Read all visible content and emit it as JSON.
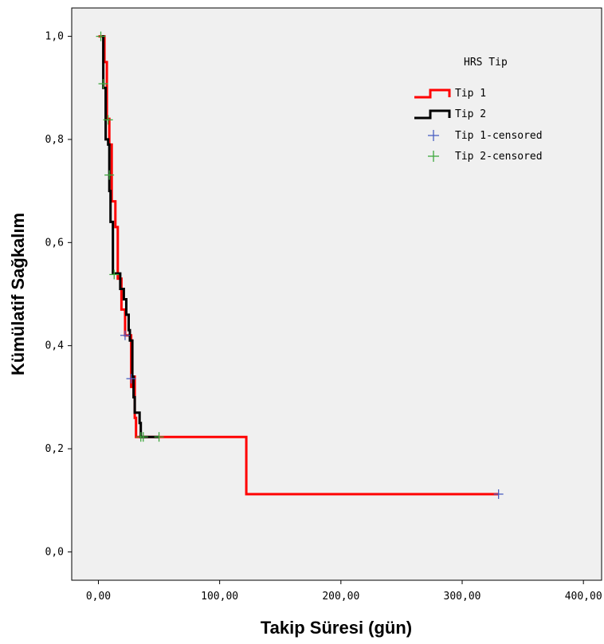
{
  "chart_data": {
    "type": "line",
    "title": "",
    "xlabel": "Takip Süresi (gün)",
    "ylabel": "Kümülatif Sağkalım",
    "xlim": [
      -22,
      415
    ],
    "ylim": [
      -0.055,
      1.055
    ],
    "x_ticks": [
      0,
      100,
      200,
      300,
      400
    ],
    "x_tick_labels": [
      "0,00",
      "100,00",
      "200,00",
      "300,00",
      "400,00"
    ],
    "y_ticks": [
      0,
      0.2,
      0.4,
      0.6,
      0.8,
      1.0
    ],
    "y_tick_labels": [
      "0,0",
      "0,2",
      "0,4",
      "0,6",
      "0,8",
      "1,0"
    ],
    "grid": false,
    "plot_background": "#f0f0f0",
    "legend": {
      "title": "HRS Tip",
      "placement": "top-right",
      "entries": [
        "Tip 1",
        "Tip 2",
        "Tip 1-censored",
        "Tip 2-censored"
      ]
    },
    "series": [
      {
        "name": "Tip 1",
        "color": "#ff0000",
        "steps": [
          [
            0,
            1.0
          ],
          [
            5,
            0.95
          ],
          [
            7,
            0.84
          ],
          [
            9,
            0.79
          ],
          [
            11,
            0.68
          ],
          [
            14,
            0.63
          ],
          [
            16,
            0.53
          ],
          [
            19,
            0.47
          ],
          [
            22,
            0.42
          ],
          [
            27,
            0.32
          ],
          [
            29,
            0.34
          ],
          [
            30,
            0.26
          ],
          [
            31,
            0.223
          ],
          [
            122,
            0.223
          ],
          [
            122,
            0.112
          ],
          [
            330,
            0.112
          ]
        ],
        "censored": [
          [
            22,
            0.42
          ],
          [
            27,
            0.336
          ],
          [
            330,
            0.112
          ]
        ]
      },
      {
        "name": "Tip 2",
        "color": "#000000",
        "steps": [
          [
            3,
            1.0
          ],
          [
            4,
            0.9
          ],
          [
            6,
            0.8
          ],
          [
            8,
            0.79
          ],
          [
            9,
            0.7
          ],
          [
            10,
            0.64
          ],
          [
            12,
            0.54
          ],
          [
            16,
            0.54
          ],
          [
            18,
            0.51
          ],
          [
            21,
            0.49
          ],
          [
            23,
            0.46
          ],
          [
            25,
            0.43
          ],
          [
            26,
            0.41
          ],
          [
            28,
            0.34
          ],
          [
            29,
            0.3
          ],
          [
            30,
            0.27
          ],
          [
            33,
            0.27
          ],
          [
            34,
            0.25
          ],
          [
            35,
            0.223
          ],
          [
            50,
            0.223
          ]
        ],
        "censored": [
          [
            2,
            1.0
          ],
          [
            4,
            0.908
          ],
          [
            8,
            0.838
          ],
          [
            9,
            0.731
          ],
          [
            13,
            0.538
          ],
          [
            35,
            0.223
          ],
          [
            37,
            0.223
          ],
          [
            50,
            0.223
          ]
        ]
      }
    ],
    "censor_colors": {
      "Tip 1-censored": "#4a5fc1",
      "Tip 2-censored": "#3fa83f"
    }
  }
}
